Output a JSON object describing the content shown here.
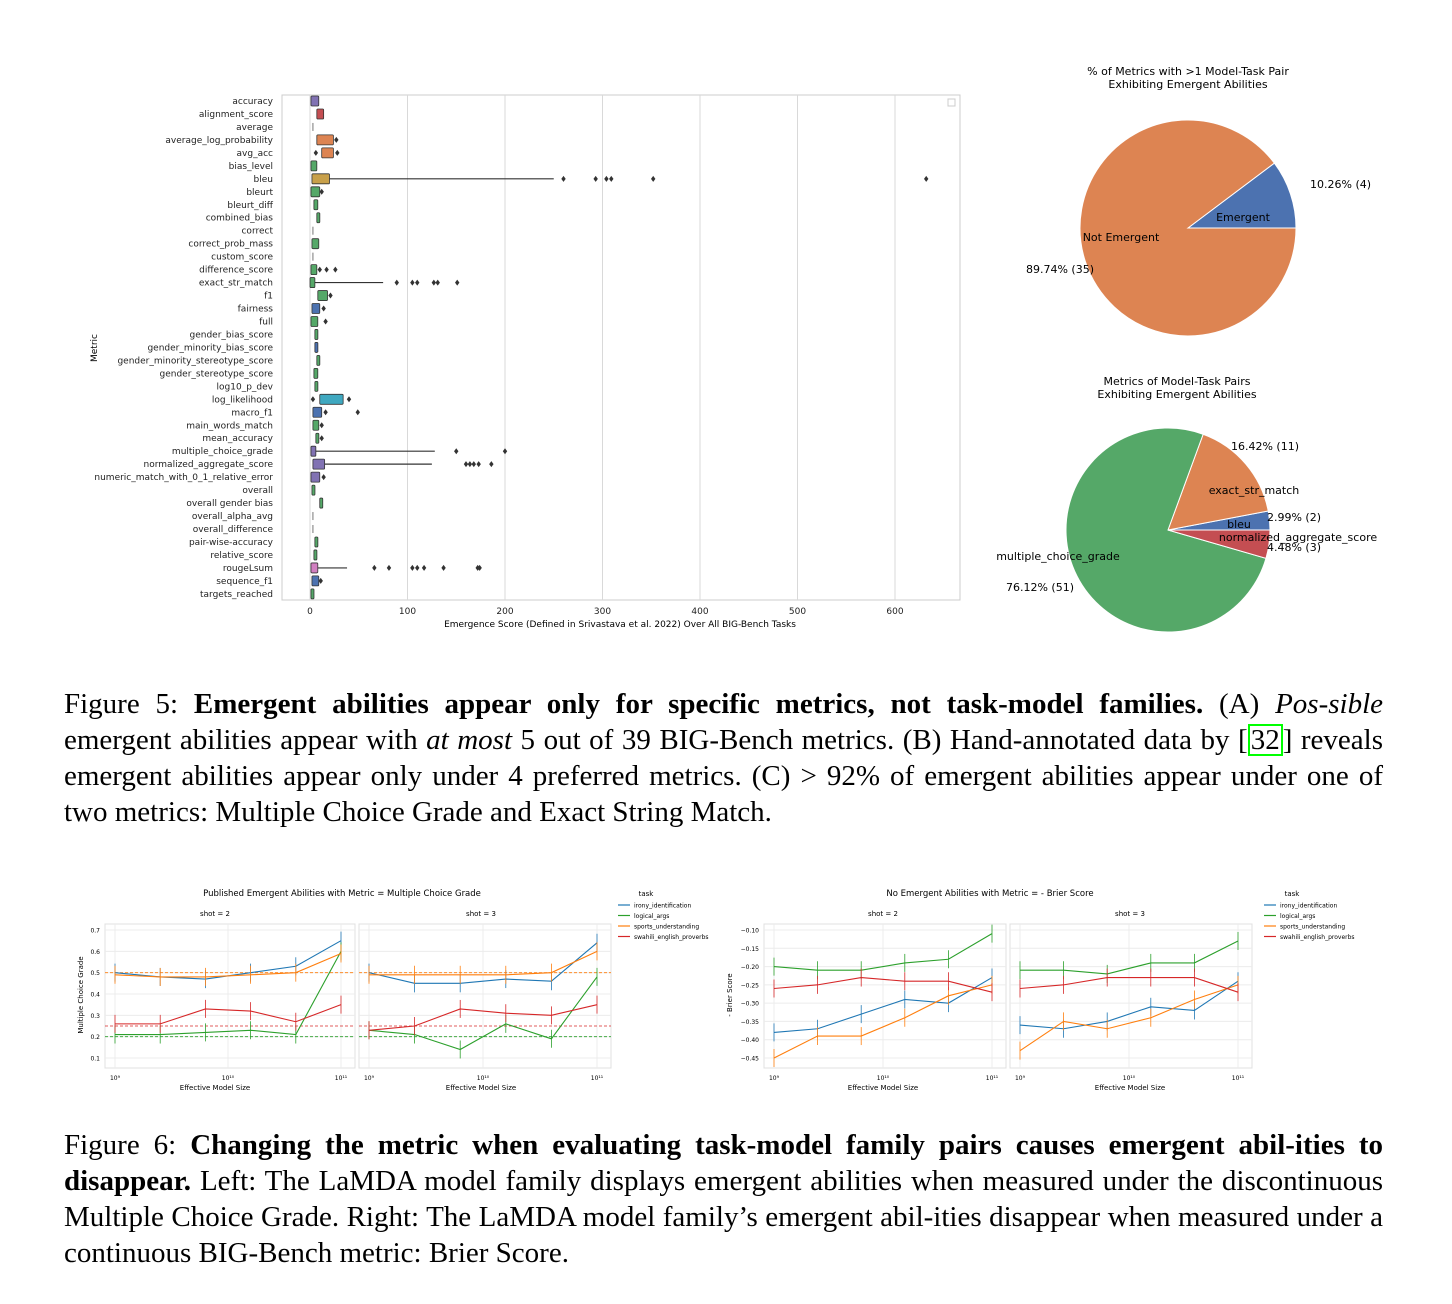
{
  "figure5": {
    "boxplot": {
      "ylabel": "Metric",
      "xlabel": "Emergence Score (Defined in Srivastava et al. 2022) Over All BIG-Bench Tasks",
      "xticks": [
        0,
        100,
        200,
        300,
        400,
        500,
        600
      ],
      "metrics": [
        "accuracy",
        "alignment_score",
        "average",
        "average_log_probability",
        "avg_acc",
        "bias_level",
        "bleu",
        "bleurt",
        "bleurt_diff",
        "combined_bias",
        "correct",
        "correct_prob_mass",
        "custom_score",
        "difference_score",
        "exact_str_match",
        "f1",
        "fairness",
        "full",
        "gender_bias_score",
        "gender_minority_bias_score",
        "gender_minority_stereotype_score",
        "gender_stereotype_score",
        "log10_p_dev",
        "log_likelihood",
        "macro_f1",
        "main_words_match",
        "mean_accuracy",
        "multiple_choice_grade",
        "normalized_aggregate_score",
        "numeric_match_with_0_1_relative_error",
        "overall",
        "overall gender bias",
        "overall_alpha_avg",
        "overall_difference",
        "pair-wise-accuracy",
        "relative_score",
        "rougeLsum",
        "sequence_f1",
        "targets_reached"
      ]
    },
    "pie1": {
      "title_line1": "% of Metrics with >1 Model-Task Pair",
      "title_line2": "Exhibiting Emergent Abilities",
      "slices": [
        {
          "label": "Emergent",
          "pct_label": "10.26%  (4)",
          "value": 4,
          "color": "#4c72b0"
        },
        {
          "label": "Not Emergent",
          "pct_label": "89.74%  (35)",
          "value": 35,
          "color": "#dd8452"
        }
      ]
    },
    "pie2": {
      "title_line1": "Metrics of Model-Task Pairs",
      "title_line2": "Exhibiting Emergent Abilities",
      "slices": [
        {
          "label": "exact_str_match",
          "pct_label": "16.42%  (11)",
          "value": 11,
          "color": "#dd8452"
        },
        {
          "label": "bleu",
          "pct_label": "2.99%  (2)",
          "value": 2,
          "color": "#4c72b0"
        },
        {
          "label": "normalized_aggregate_score",
          "pct_label": "4.48%  (3)",
          "value": 3,
          "color": "#c44e52"
        },
        {
          "label": "multiple_choice_grade",
          "pct_label": "76.12%  (51)",
          "value": 51,
          "color": "#55a868"
        }
      ]
    },
    "caption": {
      "prefix": "Figure 5: ",
      "bold": "Emergent abilities appear only for specific metrics, not task-model families.",
      "t1": " (A) ",
      "i1": "Pos-sible",
      "t2": " emergent abilities appear with ",
      "i2": "at most",
      "t3": " 5 out of 39 BIG-Bench metrics. (B) Hand-annotated data by [",
      "ref": "32",
      "t4": "] reveals emergent abilities appear only under 4 preferred metrics. (C) > 92% of emergent abilities appear under one of two metrics: Multiple Choice Grade and Exact String Match."
    }
  },
  "figure6": {
    "left": {
      "title": "Published Emergent Abilities with Metric = Multiple Choice Grade",
      "ylabel": "Multiple Choice Grade",
      "xlabel": "Effective Model Size",
      "panels": [
        "shot = 2",
        "shot = 3"
      ],
      "yticks": [
        "0.7",
        "0.6",
        "0.5",
        "0.4",
        "0.3",
        "0.2",
        "0.1"
      ],
      "xticks": [
        "10⁹",
        "10¹⁰",
        "10¹¹"
      ]
    },
    "right": {
      "title": "No Emergent Abilities with Metric = - Brier Score",
      "ylabel": "- Brier Score",
      "xlabel": "Effective Model Size",
      "panels": [
        "shot = 2",
        "shot = 3"
      ],
      "yticks": [
        "−0.10",
        "−0.15",
        "−0.20",
        "−0.25",
        "−0.30",
        "−0.35",
        "−0.40",
        "−0.45"
      ],
      "xticks": [
        "10⁹",
        "10¹⁰",
        "10¹¹"
      ]
    },
    "legend": {
      "title": "task",
      "items": [
        {
          "label": "irony_identification",
          "color": "#1f77b4"
        },
        {
          "label": "logical_args",
          "color": "#2ca02c"
        },
        {
          "label": "sports_understanding",
          "color": "#ff7f0e"
        },
        {
          "label": "swahili_english_proverbs",
          "color": "#d62728"
        }
      ]
    },
    "caption": {
      "prefix": "Figure 6: ",
      "bold": "Changing the metric when evaluating task-model family pairs causes emergent abil-ities to disappear.",
      "rest": " Left: The LaMDA model family displays emergent abilities when measured under the discontinuous Multiple Choice Grade. Right: The LaMDA model family’s emergent abil-ities disappear when measured under a continuous BIG-Bench metric: Brier Score."
    }
  }
}
